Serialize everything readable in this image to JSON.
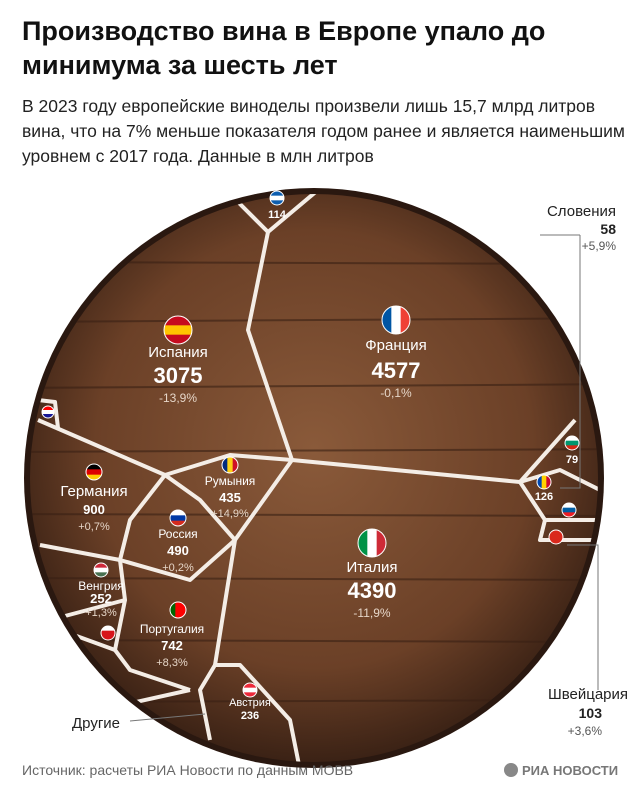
{
  "header": {
    "title": "Производство вина в Европе упало до минимума за шесть лет",
    "subtitle": "В 2023 году европейские виноделы произвели лишь 15,7 млрд литров вина, что на 7% меньше показателя годом ранее и является наименьшим уровнем с 2017 года. Данные в млн литров"
  },
  "countries": [
    {
      "name": "Франция",
      "value": 4577,
      "change": "-0,1%"
    },
    {
      "name": "Италия",
      "value": 4390,
      "change": "-11,9%"
    },
    {
      "name": "Испания",
      "value": 3075,
      "change": "-13,9%"
    },
    {
      "name": "Германия",
      "value": 900,
      "change": "+0,7%"
    },
    {
      "name": "Португалия",
      "value": 742,
      "change": "+8,3%"
    },
    {
      "name": "Россия",
      "value": 490,
      "change": "+0,2%"
    },
    {
      "name": "Румыния",
      "value": 435,
      "change": "+14,9%"
    },
    {
      "name": "Венгрия",
      "value": 252,
      "change": "+1,3%"
    },
    {
      "name": "Австрия",
      "value": 236
    },
    {
      "name": "Швейцария",
      "value": 103,
      "change": "+3,6%"
    },
    {
      "name": "Словения",
      "value": 58,
      "change": "+5,9%"
    },
    {
      "value": 114
    },
    {
      "value": 79
    },
    {
      "value": 126
    }
  ],
  "others_label": "Другие",
  "source": "Источник: расчеты РИА Новости по данным МОВВ",
  "logo": "РИА НОВОСТИ"
}
